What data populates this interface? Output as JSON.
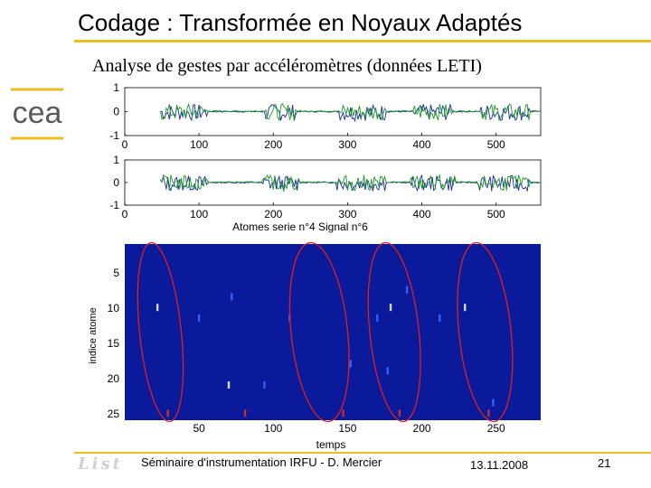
{
  "slide": {
    "title": "Codage : Transformée en Noyaux Adaptés",
    "subtitle": "Analyse de gestes par accéléromètres (données LETI)",
    "accent_color": "#e8c020"
  },
  "logo": {
    "name": "cea-logo",
    "text": "cea"
  },
  "chart_data": [
    {
      "type": "line",
      "xlim": [
        0,
        560
      ],
      "ylim": [
        -1,
        1
      ],
      "xticks": [
        "0",
        "100",
        "200",
        "300",
        "400",
        "500"
      ],
      "yticks": [
        "1",
        "0",
        "-1"
      ],
      "active_segments": [
        [
          50,
          110
        ],
        [
          190,
          230
        ],
        [
          290,
          350
        ],
        [
          390,
          440
        ],
        [
          480,
          545
        ]
      ],
      "series_colors": [
        "#1a2aa0",
        "#1a9a20"
      ]
    },
    {
      "type": "line",
      "xlim": [
        0,
        560
      ],
      "ylim": [
        -1,
        1
      ],
      "xticks": [
        "0",
        "100",
        "200",
        "300",
        "400",
        "500"
      ],
      "yticks": [
        "1",
        "0",
        "-1"
      ],
      "title": "Atomes serie n°4  Signal n°6",
      "active_segments": [
        [
          45,
          110
        ],
        [
          185,
          235
        ],
        [
          285,
          350
        ],
        [
          385,
          445
        ],
        [
          475,
          545
        ]
      ],
      "series_colors": [
        "#1a2aa0",
        "#1a9a20"
      ]
    },
    {
      "type": "heatmap",
      "xlabel": "temps",
      "ylabel": "indice atome",
      "xlim": [
        0,
        280
      ],
      "ylim": [
        1,
        26
      ],
      "xticks": [
        "50",
        "100",
        "150",
        "200",
        "250"
      ],
      "yticks": [
        "5",
        "10",
        "15",
        "20",
        "25"
      ],
      "background_color": "#0a1a9a",
      "atoms": [
        {
          "t": 22,
          "idx": 10,
          "color": "#d8d8d8"
        },
        {
          "t": 29,
          "idx": 25,
          "color": "#c03030"
        },
        {
          "t": 50,
          "idx": 11.5,
          "color": "#3060ff"
        },
        {
          "t": 72,
          "idx": 8.5,
          "color": "#3060ff"
        },
        {
          "t": 70,
          "idx": 21,
          "color": "#d8d8d8"
        },
        {
          "t": 81,
          "idx": 25,
          "color": "#c03030"
        },
        {
          "t": 94,
          "idx": 21,
          "color": "#3060ff"
        },
        {
          "t": 111,
          "idx": 11.5,
          "color": "#3060ff"
        },
        {
          "t": 152,
          "idx": 18,
          "color": "#3060ff"
        },
        {
          "t": 147,
          "idx": 25,
          "color": "#c03030"
        },
        {
          "t": 170,
          "idx": 11.5,
          "color": "#3060ff"
        },
        {
          "t": 179,
          "idx": 10,
          "color": "#d8d8d8"
        },
        {
          "t": 177,
          "idx": 19,
          "color": "#3060ff"
        },
        {
          "t": 185,
          "idx": 25,
          "color": "#c03030"
        },
        {
          "t": 190,
          "idx": 7.5,
          "color": "#3060ff"
        },
        {
          "t": 212,
          "idx": 11.5,
          "color": "#3060ff"
        },
        {
          "t": 229,
          "idx": 10,
          "color": "#d8d8d8"
        },
        {
          "t": 245,
          "idx": 25,
          "color": "#c03030"
        },
        {
          "t": 248,
          "idx": 23.5,
          "color": "#3060ff"
        }
      ],
      "highlight_ellipses": [
        {
          "t_from": 10,
          "t_to": 38,
          "color": "#e02020"
        },
        {
          "t_from": 112,
          "t_to": 150,
          "color": "#e02020"
        },
        {
          "t_from": 165,
          "t_to": 198,
          "color": "#e02020"
        },
        {
          "t_from": 225,
          "t_to": 260,
          "color": "#e02020"
        }
      ]
    }
  ],
  "footer": {
    "logo_text": "List",
    "seminar": "Séminaire d'instrumentation IRFU - D. Mercier",
    "date": "13.11.2008",
    "page": "21"
  }
}
